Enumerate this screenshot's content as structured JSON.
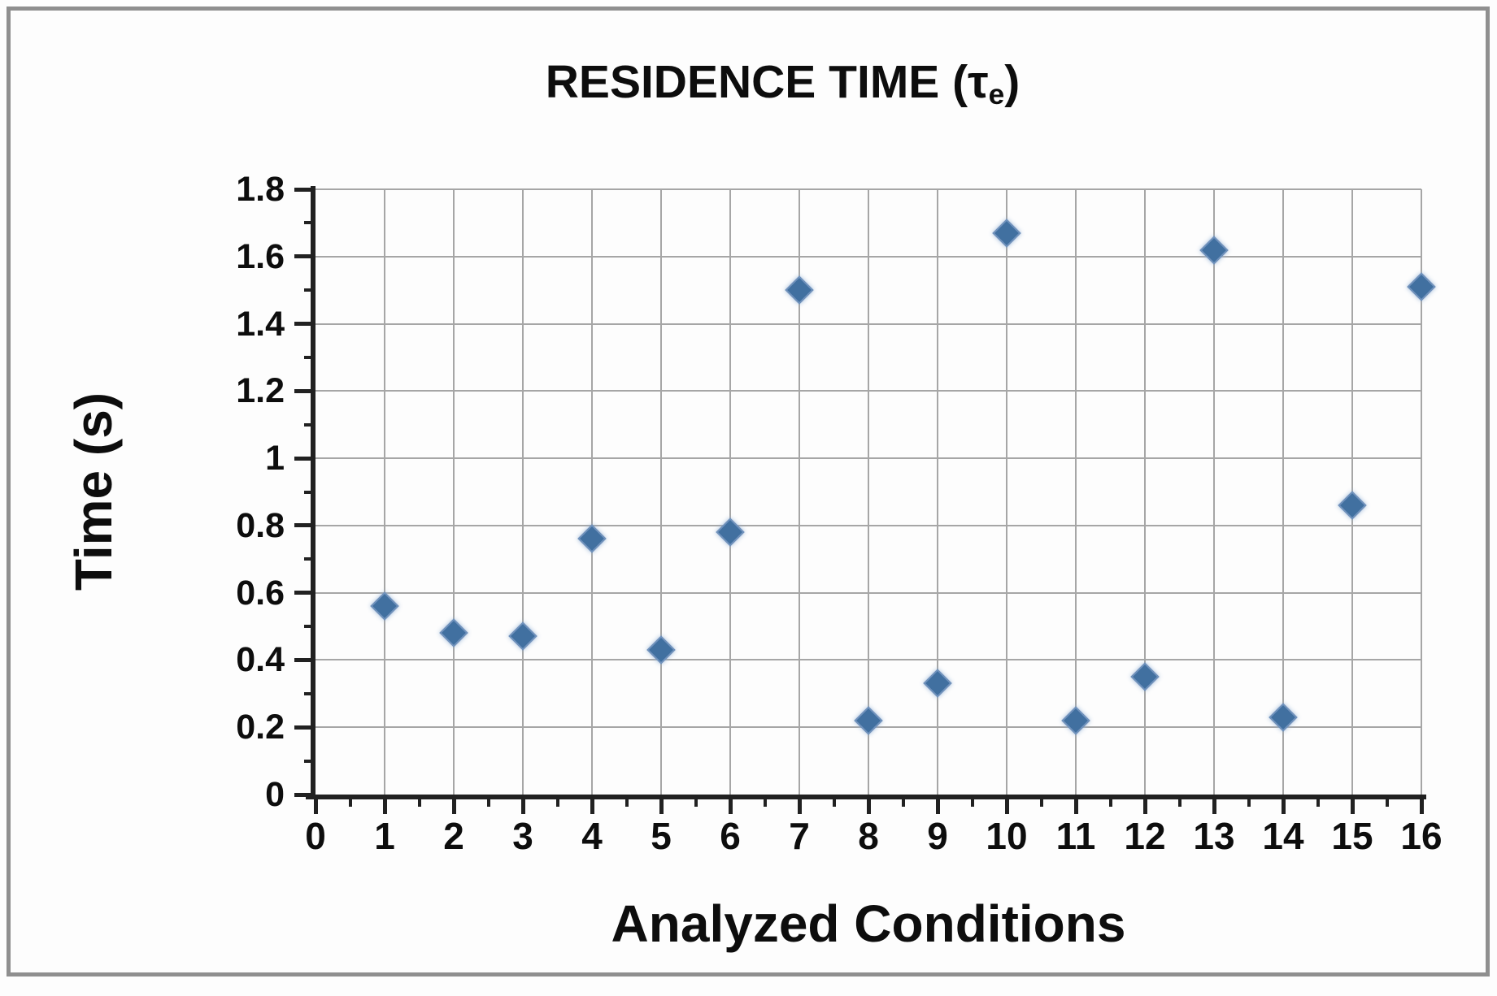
{
  "figure": {
    "title_main": "RESIDENCE TIME (τ",
    "title_sub": "e",
    "title_close": ")"
  },
  "chart_data": {
    "type": "scatter",
    "title": "RESIDENCE TIME (τe)",
    "xlabel": "Analyzed Conditions",
    "ylabel": "Time (s)",
    "x": [
      1,
      2,
      3,
      4,
      5,
      6,
      7,
      8,
      9,
      10,
      11,
      12,
      13,
      14,
      15,
      16
    ],
    "y": [
      0.56,
      0.48,
      0.47,
      0.76,
      0.43,
      0.78,
      1.5,
      0.22,
      0.33,
      1.67,
      0.22,
      0.35,
      1.62,
      0.23,
      0.86,
      1.51
    ],
    "xlim": [
      0,
      16
    ],
    "ylim": [
      0,
      1.8
    ],
    "x_ticks": [
      0,
      1,
      2,
      3,
      4,
      5,
      6,
      7,
      8,
      9,
      10,
      11,
      12,
      13,
      14,
      15,
      16
    ],
    "y_ticks": [
      0,
      0.2,
      0.4,
      0.6,
      0.8,
      1,
      1.2,
      1.4,
      1.6,
      1.8
    ],
    "x_minor_tick_step": 0.5,
    "y_minor_tick_step": 0.1,
    "grid": "both-major",
    "legend_position": "none",
    "marker_shape": "diamond",
    "marker_color": "#4170A0",
    "gridline_color": "#A6A6A6",
    "axis_color": "#212121",
    "text_color": "#0D0D0D",
    "background_color": "#FDFDFD",
    "border_color": "#8F8F8F"
  }
}
